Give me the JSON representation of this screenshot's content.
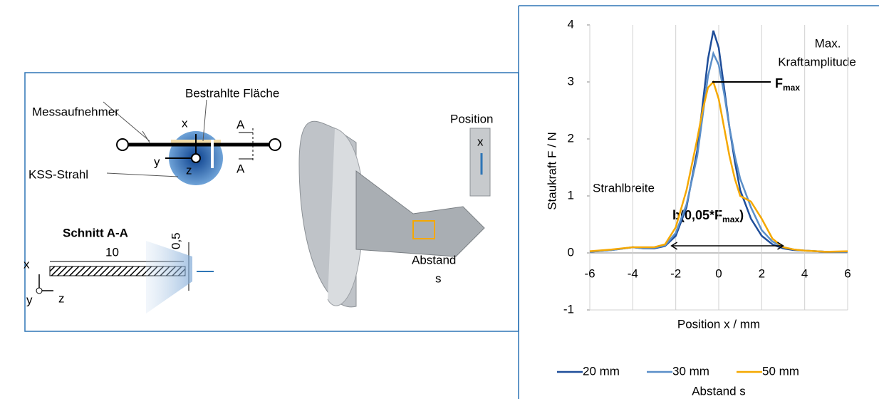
{
  "chart_data": {
    "type": "line",
    "y_label": "Staukraft F / N",
    "x_label": "Position x / mm",
    "x": [
      -6,
      -5,
      -4,
      -3.5,
      -3,
      -2.5,
      -2,
      -1.5,
      -1,
      -0.75,
      -0.5,
      -0.25,
      0,
      0.25,
      0.5,
      0.75,
      1,
      1.5,
      2,
      2.5,
      3,
      3.5,
      4,
      5,
      6
    ],
    "series": [
      {
        "name": "20 mm",
        "color": "#1f4e9a",
        "values": [
          0.02,
          0.05,
          0.1,
          0.08,
          0.08,
          0.12,
          0.3,
          0.8,
          1.8,
          2.6,
          3.4,
          3.9,
          3.6,
          2.9,
          2.2,
          1.6,
          1.1,
          0.6,
          0.3,
          0.15,
          0.08,
          0.05,
          0.04,
          0.02,
          0.02
        ]
      },
      {
        "name": "30 mm",
        "color": "#5b8fc9",
        "values": [
          0.02,
          0.05,
          0.1,
          0.08,
          0.09,
          0.13,
          0.35,
          0.85,
          1.7,
          2.4,
          3.1,
          3.5,
          3.3,
          2.8,
          2.2,
          1.7,
          1.3,
          0.8,
          0.4,
          0.2,
          0.1,
          0.06,
          0.04,
          0.02,
          0.02
        ]
      },
      {
        "name": "50 mm",
        "color": "#f5a800",
        "values": [
          0.03,
          0.06,
          0.1,
          0.1,
          0.1,
          0.15,
          0.45,
          1.1,
          2.0,
          2.5,
          2.9,
          3.0,
          2.7,
          2.2,
          1.7,
          1.3,
          1.0,
          0.9,
          0.6,
          0.25,
          0.1,
          0.06,
          0.04,
          0.02,
          0.03
        ]
      }
    ],
    "xlim": [
      -6,
      6
    ],
    "xticks": [
      -6,
      -4,
      -2,
      0,
      2,
      4,
      6
    ],
    "ylim": [
      -1,
      4
    ],
    "yticks": [
      -1,
      0,
      1,
      2,
      3,
      4
    ],
    "grid": true,
    "legend_title": "Abstand s",
    "annotations": {
      "max1": "Max.",
      "max2": "Kraftamplitude",
      "fmax": [
        "F",
        "max"
      ],
      "width_title": "Strahlbreite",
      "width_label": [
        "b(0,05*F",
        "max",
        ")"
      ]
    }
  },
  "diagram": {
    "labels": [
      "Bestrahlte Fläche",
      "Messaufnehmer",
      "x",
      "A",
      "y",
      "z",
      "A",
      "KSS-Strahl",
      "Schnitt A-A",
      "10",
      "0,5",
      "x",
      "y",
      "z",
      "Position",
      "x",
      "Abstand",
      "s"
    ]
  }
}
